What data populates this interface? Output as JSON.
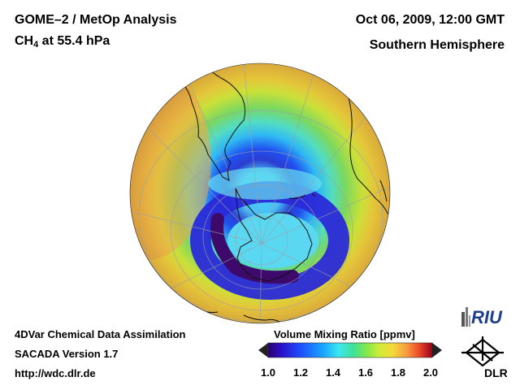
{
  "header": {
    "title_line1": "GOME–2 / MetOp Analysis",
    "species": "CH",
    "species_sub": "4",
    "level": " at 55.4 hPa",
    "date": "Oct 06, 2009, 12:00 GMT",
    "region": "Southern Hemisphere"
  },
  "footer": {
    "line1": "4DVar Chemical Data Assimilation",
    "line2": "SACADA Version 1.7",
    "line3": "http://wdc.dlr.de"
  },
  "colorbar": {
    "title": "Volume Mixing Ratio [ppmv]",
    "ticks": [
      "1.0",
      "1.2",
      "1.4",
      "1.6",
      "1.8",
      "2.0"
    ],
    "min": 1.0,
    "max": 2.0,
    "colors": [
      "#1a006e",
      "#2a1ad0",
      "#1f5cff",
      "#1aa8ff",
      "#39e8f0",
      "#3de39a",
      "#7be84a",
      "#c8ec3a",
      "#f5e03c",
      "#f8b040",
      "#f26a2e",
      "#e02020",
      "#a8001a"
    ]
  },
  "map": {
    "projection": "orthographic, south pole centred",
    "field_colors": {
      "low_ring": "#3a0a78",
      "inner_core": "#5fd6f0",
      "midlatitude": "#63d67e",
      "subtropics": "#f2c23a"
    }
  },
  "logos": {
    "riu": "RIU",
    "dlr": "DLR"
  }
}
